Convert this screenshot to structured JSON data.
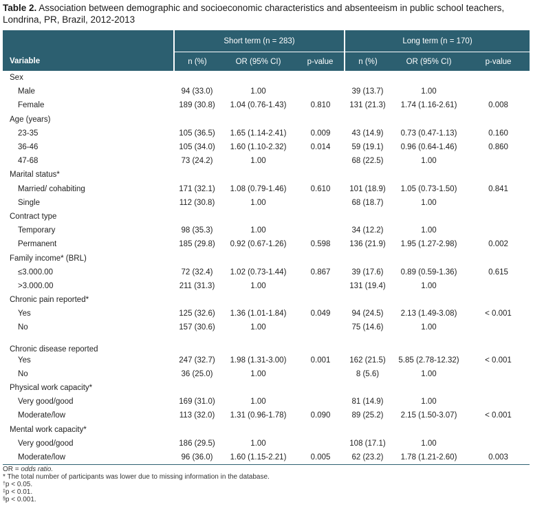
{
  "caption": {
    "label": "Table 2.",
    "text": " Association between demographic and socioeconomic characteristics and absenteeism in public school teachers, Londrina, PR, Brazil, 2012-2013"
  },
  "header": {
    "group_short": "Short term (n = 283)",
    "group_long": "Long term (n = 170)",
    "variable": "Variable",
    "n_pct_short": "n (%)",
    "or_short": "OR (95% CI)",
    "p_short": "p-value",
    "n_pct_long": "n (%)",
    "or_long": "OR (95% CI)",
    "p_long": "p-value"
  },
  "rows": [
    {
      "type": "cat",
      "label": "Sex"
    },
    {
      "type": "sub",
      "label": "Male",
      "n1": "94 (33.0)",
      "or1": "1.00",
      "p1": "",
      "n2": "39 (13.7)",
      "or2": "1.00",
      "p2": ""
    },
    {
      "type": "sub",
      "label": "Female",
      "n1": "189 (30.8)",
      "or1": "1.04 (0.76-1.43)",
      "p1": "0.810",
      "n2": "131 (21.3)",
      "or2": "1.74 (1.16-2.61)",
      "p2": "0.008"
    },
    {
      "type": "cat",
      "label": "Age (years)"
    },
    {
      "type": "sub",
      "label": "23-35",
      "n1": "105 (36.5)",
      "or1": "1.65 (1.14-2.41)",
      "p1": "0.009",
      "n2": "43 (14.9)",
      "or2": "0.73 (0.47-1.13)",
      "p2": "0.160"
    },
    {
      "type": "sub",
      "label": "36-46",
      "n1": "105 (34.0)",
      "or1": "1.60 (1.10-2.32)",
      "p1": "0.014",
      "n2": "59 (19.1)",
      "or2": "0.96 (0.64-1.46)",
      "p2": "0.860"
    },
    {
      "type": "sub",
      "label": "47-68",
      "n1": "73 (24.2)",
      "or1": "1.00",
      "p1": "",
      "n2": "68 (22.5)",
      "or2": "1.00",
      "p2": ""
    },
    {
      "type": "cat",
      "label": "Marital status*"
    },
    {
      "type": "sub",
      "label": "Married/ cohabiting",
      "n1": "171 (32.1)",
      "or1": "1.08 (0.79-1.46)",
      "p1": "0.610",
      "n2": "101 (18.9)",
      "or2": "1.05 (0.73-1.50)",
      "p2": "0.841"
    },
    {
      "type": "sub",
      "label": "Single",
      "n1": "112 (30.8)",
      "or1": "1.00",
      "p1": "",
      "n2": "68 (18.7)",
      "or2": "1.00",
      "p2": ""
    },
    {
      "type": "cat",
      "label": "Contract type"
    },
    {
      "type": "sub",
      "label": "Temporary",
      "n1": "98 (35.3)",
      "or1": "1.00",
      "p1": "",
      "n2": "34 (12.2)",
      "or2": "1.00",
      "p2": ""
    },
    {
      "type": "sub",
      "label": "Permanent",
      "n1": "185 (29.8)",
      "or1": "0.92 (0.67-1.26)",
      "p1": "0.598",
      "n2": "136 (21.9)",
      "or2": "1.95 (1.27-2.98)",
      "p2": "0.002"
    },
    {
      "type": "cat",
      "label": "Family income* (BRL)"
    },
    {
      "type": "sub",
      "label": "≤3.000.00",
      "n1": "72 (32.4)",
      "or1": "1.02 (0.73-1.44)",
      "p1": "0.867",
      "n2": "39 (17.6)",
      "or2": "0.89 (0.59-1.36)",
      "p2": "0.615"
    },
    {
      "type": "sub",
      "label": ">3.000.00",
      "n1": "211 (31.3)",
      "or1": "1.00",
      "p1": "",
      "n2": "131 (19.4)",
      "or2": "1.00",
      "p2": ""
    },
    {
      "type": "cat",
      "label": "Chronic pain reported*"
    },
    {
      "type": "sub",
      "label": "Yes",
      "n1": "125 (32.6)",
      "or1": "1.36 (1.01-1.84)",
      "p1": "0.049",
      "n2": "94 (24.5)",
      "or2": "2.13 (1.49-3.08)",
      "p2": "< 0.001"
    },
    {
      "type": "sub",
      "label": "No",
      "n1": "157 (30.6)",
      "or1": "1.00",
      "p1": "",
      "n2": "75 (14.6)",
      "or2": "1.00",
      "p2": ""
    },
    {
      "type": "cat",
      "label": "Chronic disease reported",
      "tall": true
    },
    {
      "type": "sub",
      "label": "Yes",
      "n1": "247 (32.7)",
      "or1": "1.98 (1.31-3.00)",
      "p1": "0.001",
      "n2": "162 (21.5)",
      "or2": "5.85 (2.78-12.32)",
      "p2": "< 0.001"
    },
    {
      "type": "sub",
      "label": "No",
      "n1": "36 (25.0)",
      "or1": "1.00",
      "p1": "",
      "n2": "8 (5.6)",
      "or2": "1.00",
      "p2": ""
    },
    {
      "type": "cat",
      "label": "Physical work capacity*"
    },
    {
      "type": "sub",
      "label": "Very good/good",
      "n1": "169 (31.0)",
      "or1": "1.00",
      "p1": "",
      "n2": "81 (14.9)",
      "or2": "1.00",
      "p2": ""
    },
    {
      "type": "sub",
      "label": "Moderate/low",
      "n1": "113 (32.0)",
      "or1": "1.31 (0.96-1.78)",
      "p1": "0.090",
      "n2": "89 (25.2)",
      "or2": "2.15 (1.50-3.07)",
      "p2": "< 0.001"
    },
    {
      "type": "cat",
      "label": "Mental work capacity*"
    },
    {
      "type": "sub",
      "label": "Very good/good",
      "n1": "186 (29.5)",
      "or1": "1.00",
      "p1": "",
      "n2": "108 (17.1)",
      "or2": "1.00",
      "p2": ""
    },
    {
      "type": "sub",
      "label": "Moderate/low",
      "n1": "96 (36.0)",
      "or1": "1.60 (1.15-2.21)",
      "p1": "0.005",
      "n2": "62 (23.2)",
      "or2": "1.78 (1.21-2.60)",
      "p2": "0.003"
    }
  ],
  "notes": {
    "or_prefix": "OR = ",
    "or_italic": "odds ratio.",
    "missing": "* The total number of participants was lower due to missing information in the database.",
    "p05_mark": "†",
    "p05": "p < 0.05.",
    "p01_mark": "‡",
    "p01": "p < 0.01.",
    "p001_mark": "§",
    "p001": "p < 0.001."
  }
}
